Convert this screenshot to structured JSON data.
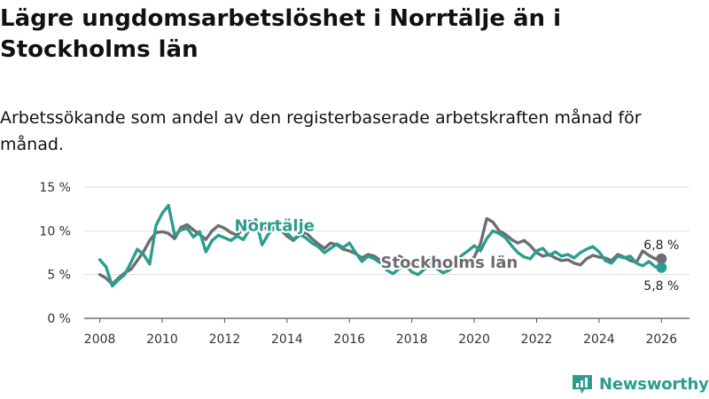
{
  "title": "Lägre ungdomsarbetslöshet i Norrtälje än i Stockholms län",
  "subtitle": "Arbetssökande som andel av den registerbaserade arbetskraften månad för månad.",
  "brand": {
    "name": "Newsworthy",
    "color": "#2a9d8f"
  },
  "chart_data": {
    "type": "line",
    "title": "Lägre ungdomsarbetslöshet i Norrtälje än i Stockholms län",
    "xlabel": "",
    "ylabel": "",
    "xlim": [
      2007.5,
      2026.9
    ],
    "ylim": [
      0,
      15
    ],
    "grid": true,
    "xticks": [
      2008,
      2010,
      2012,
      2014,
      2016,
      2018,
      2020,
      2022,
      2024,
      2026
    ],
    "xtick_labels": [
      "2008",
      "2010",
      "2012",
      "2014",
      "2016",
      "2018",
      "2020",
      "2022",
      "2024",
      "2026"
    ],
    "yticks": [
      0,
      5,
      10,
      15
    ],
    "ytick_labels": [
      "0 %",
      "5 %",
      "10 %",
      "15 %"
    ],
    "series": [
      {
        "name": "Stockholms län",
        "color": "#6f6c70",
        "end_label": "6,8 %",
        "points": [
          [
            2008.0,
            5.0
          ],
          [
            2008.2,
            4.6
          ],
          [
            2008.4,
            3.9
          ],
          [
            2008.6,
            4.6
          ],
          [
            2008.8,
            5.2
          ],
          [
            2009.0,
            5.6
          ],
          [
            2009.2,
            6.6
          ],
          [
            2009.4,
            7.6
          ],
          [
            2009.6,
            8.9
          ],
          [
            2009.8,
            9.8
          ],
          [
            2010.0,
            9.9
          ],
          [
            2010.2,
            9.7
          ],
          [
            2010.4,
            9.1
          ],
          [
            2010.6,
            10.4
          ],
          [
            2010.8,
            10.7
          ],
          [
            2011.0,
            10.1
          ],
          [
            2011.2,
            9.6
          ],
          [
            2011.4,
            9.0
          ],
          [
            2011.6,
            10.0
          ],
          [
            2011.8,
            10.6
          ],
          [
            2012.0,
            10.3
          ],
          [
            2012.2,
            9.8
          ],
          [
            2012.4,
            9.5
          ],
          [
            2012.6,
            10.3
          ],
          [
            2012.8,
            11.1
          ],
          [
            2013.0,
            11.0
          ],
          [
            2013.2,
            10.4
          ],
          [
            2013.4,
            10.2
          ],
          [
            2013.6,
            10.6
          ],
          [
            2013.8,
            10.1
          ],
          [
            2014.0,
            9.4
          ],
          [
            2014.2,
            8.9
          ],
          [
            2014.4,
            9.5
          ],
          [
            2014.6,
            9.8
          ],
          [
            2014.8,
            9.1
          ],
          [
            2015.0,
            8.5
          ],
          [
            2015.2,
            8.0
          ],
          [
            2015.4,
            8.6
          ],
          [
            2015.6,
            8.4
          ],
          [
            2015.8,
            7.9
          ],
          [
            2016.0,
            7.7
          ],
          [
            2016.2,
            7.4
          ],
          [
            2016.4,
            6.9
          ],
          [
            2016.6,
            7.3
          ],
          [
            2016.8,
            7.1
          ],
          [
            2017.0,
            6.6
          ],
          [
            2017.2,
            6.4
          ],
          [
            2017.4,
            6.8
          ],
          [
            2017.6,
            7.1
          ],
          [
            2017.8,
            6.7
          ],
          [
            2018.0,
            6.3
          ],
          [
            2018.2,
            6.0
          ],
          [
            2018.4,
            6.4
          ],
          [
            2018.6,
            6.9
          ],
          [
            2018.8,
            6.6
          ],
          [
            2019.0,
            6.2
          ],
          [
            2019.2,
            5.9
          ],
          [
            2019.4,
            6.3
          ],
          [
            2019.6,
            6.7
          ],
          [
            2019.8,
            6.5
          ],
          [
            2020.0,
            7.0
          ],
          [
            2020.2,
            8.5
          ],
          [
            2020.4,
            11.4
          ],
          [
            2020.6,
            11.0
          ],
          [
            2020.8,
            10.0
          ],
          [
            2021.0,
            9.6
          ],
          [
            2021.2,
            9.0
          ],
          [
            2021.4,
            8.6
          ],
          [
            2021.6,
            8.9
          ],
          [
            2021.8,
            8.3
          ],
          [
            2022.0,
            7.5
          ],
          [
            2022.2,
            7.1
          ],
          [
            2022.4,
            7.3
          ],
          [
            2022.6,
            6.9
          ],
          [
            2022.8,
            6.6
          ],
          [
            2023.0,
            6.7
          ],
          [
            2023.2,
            6.3
          ],
          [
            2023.4,
            6.1
          ],
          [
            2023.6,
            6.8
          ],
          [
            2023.8,
            7.2
          ],
          [
            2024.0,
            7.0
          ],
          [
            2024.2,
            6.9
          ],
          [
            2024.4,
            6.6
          ],
          [
            2024.6,
            7.3
          ],
          [
            2024.8,
            7.0
          ],
          [
            2025.0,
            6.6
          ],
          [
            2025.2,
            6.4
          ],
          [
            2025.4,
            7.7
          ],
          [
            2025.6,
            7.2
          ],
          [
            2025.8,
            6.8
          ],
          [
            2026.0,
            6.8
          ]
        ]
      },
      {
        "name": "Norrtälje",
        "color": "#2a9d8f",
        "end_label": "5,8 %",
        "points": [
          [
            2008.0,
            6.7
          ],
          [
            2008.2,
            5.9
          ],
          [
            2008.4,
            3.7
          ],
          [
            2008.6,
            4.4
          ],
          [
            2008.8,
            5.0
          ],
          [
            2009.0,
            6.4
          ],
          [
            2009.2,
            7.9
          ],
          [
            2009.4,
            7.3
          ],
          [
            2009.6,
            6.2
          ],
          [
            2009.8,
            10.6
          ],
          [
            2010.0,
            12.0
          ],
          [
            2010.2,
            12.9
          ],
          [
            2010.4,
            9.5
          ],
          [
            2010.6,
            10.1
          ],
          [
            2010.8,
            10.3
          ],
          [
            2011.0,
            9.3
          ],
          [
            2011.2,
            9.9
          ],
          [
            2011.4,
            7.6
          ],
          [
            2011.6,
            8.9
          ],
          [
            2011.8,
            9.5
          ],
          [
            2012.0,
            9.2
          ],
          [
            2012.2,
            8.9
          ],
          [
            2012.4,
            9.4
          ],
          [
            2012.6,
            9.0
          ],
          [
            2012.8,
            10.2
          ],
          [
            2013.0,
            11.3
          ],
          [
            2013.2,
            8.4
          ],
          [
            2013.4,
            9.6
          ],
          [
            2013.6,
            10.4
          ],
          [
            2013.8,
            10.0
          ],
          [
            2014.0,
            9.8
          ],
          [
            2014.2,
            9.0
          ],
          [
            2014.4,
            9.6
          ],
          [
            2014.6,
            9.2
          ],
          [
            2014.8,
            8.6
          ],
          [
            2015.0,
            8.2
          ],
          [
            2015.2,
            7.5
          ],
          [
            2015.4,
            8.0
          ],
          [
            2015.6,
            8.5
          ],
          [
            2015.8,
            8.1
          ],
          [
            2016.0,
            8.6
          ],
          [
            2016.2,
            7.5
          ],
          [
            2016.4,
            6.5
          ],
          [
            2016.6,
            7.1
          ],
          [
            2016.8,
            6.8
          ],
          [
            2017.0,
            6.3
          ],
          [
            2017.2,
            5.5
          ],
          [
            2017.4,
            5.1
          ],
          [
            2017.6,
            5.7
          ],
          [
            2017.8,
            6.0
          ],
          [
            2018.0,
            5.3
          ],
          [
            2018.2,
            5.0
          ],
          [
            2018.4,
            5.6
          ],
          [
            2018.6,
            6.2
          ],
          [
            2018.8,
            5.7
          ],
          [
            2019.0,
            5.2
          ],
          [
            2019.2,
            5.5
          ],
          [
            2019.4,
            6.4
          ],
          [
            2019.6,
            7.2
          ],
          [
            2019.8,
            7.7
          ],
          [
            2020.0,
            8.3
          ],
          [
            2020.2,
            7.7
          ],
          [
            2020.4,
            9.1
          ],
          [
            2020.6,
            10.0
          ],
          [
            2020.8,
            9.7
          ],
          [
            2021.0,
            9.2
          ],
          [
            2021.2,
            8.3
          ],
          [
            2021.4,
            7.5
          ],
          [
            2021.6,
            7.0
          ],
          [
            2021.8,
            6.8
          ],
          [
            2022.0,
            7.7
          ],
          [
            2022.2,
            8.0
          ],
          [
            2022.4,
            7.2
          ],
          [
            2022.6,
            7.6
          ],
          [
            2022.8,
            7.1
          ],
          [
            2023.0,
            7.3
          ],
          [
            2023.2,
            6.9
          ],
          [
            2023.4,
            7.5
          ],
          [
            2023.6,
            7.9
          ],
          [
            2023.8,
            8.2
          ],
          [
            2024.0,
            7.6
          ],
          [
            2024.2,
            6.6
          ],
          [
            2024.4,
            6.3
          ],
          [
            2024.6,
            7.1
          ],
          [
            2024.8,
            6.9
          ],
          [
            2025.0,
            7.1
          ],
          [
            2025.2,
            6.3
          ],
          [
            2025.4,
            6.0
          ],
          [
            2025.6,
            6.5
          ],
          [
            2025.8,
            5.9
          ],
          [
            2026.0,
            5.8
          ]
        ]
      }
    ],
    "annotations": [
      {
        "text": "Norrtälje",
        "series": "Norrtälje",
        "x": 2013.6,
        "y": 10.6
      },
      {
        "text": "Stockholms län",
        "series": "Stockholms län",
        "x": 2019.2,
        "y": 6.4
      }
    ]
  }
}
